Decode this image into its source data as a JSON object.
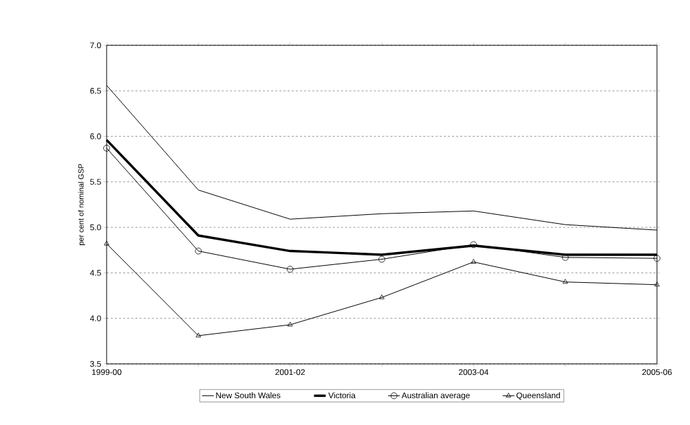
{
  "chart_data": {
    "type": "line",
    "ylabel": "per cent of nominal GSP",
    "categories": [
      "1999-00",
      null,
      "2001-02",
      null,
      "2003-04",
      null,
      "2005-06"
    ],
    "series": [
      {
        "name": "New  South Wales",
        "color": "#000000",
        "marker": "none",
        "values": [
          6.56,
          5.41,
          5.09,
          5.15,
          5.18,
          5.03,
          4.97
        ]
      },
      {
        "name": "Victoria",
        "color": "#000000",
        "marker": "none",
        "values": [
          5.96,
          4.91,
          4.74,
          4.7,
          4.8,
          4.7,
          4.7
        ]
      },
      {
        "name": "Australian average",
        "color": "#000000",
        "marker": "circle",
        "values": [
          5.87,
          4.74,
          4.54,
          4.65,
          4.81,
          4.67,
          4.66
        ]
      },
      {
        "name": "Queensland",
        "color": "#000000",
        "marker": "triangle",
        "values": [
          4.82,
          3.81,
          3.93,
          4.23,
          4.62,
          4.4,
          4.37
        ]
      }
    ],
    "ylim": [
      3.5,
      7.0
    ],
    "yticks": [
      {
        "value": 3.5,
        "label": "3.5"
      },
      {
        "value": 4.0,
        "label": "4.0"
      },
      {
        "value": 4.5,
        "label": "4.5"
      },
      {
        "value": 5.0,
        "label": "5.0"
      },
      {
        "value": 5.5,
        "label": "5.5"
      },
      {
        "value": 6.0,
        "label": "6.0"
      },
      {
        "value": 6.5,
        "label": "6.5"
      },
      {
        "value": 7.0,
        "label": "7.0"
      }
    ],
    "grid": "y",
    "legend": "bottom",
    "line_style": "solid"
  }
}
